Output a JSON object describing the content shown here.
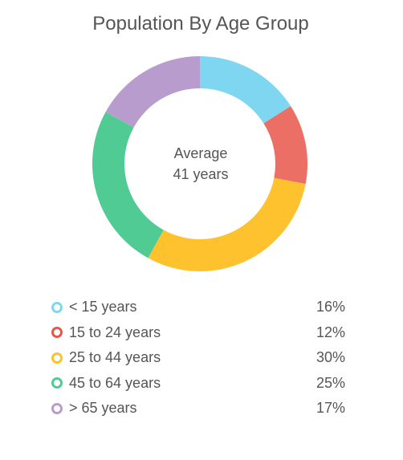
{
  "chart_data": {
    "type": "pie",
    "title": "Population By Age Group",
    "center_label": {
      "line1": "Average",
      "line2": "41 years"
    },
    "categories": [
      "< 15 years",
      "15 to 24 years",
      "25 to 44 years",
      "45 to 64 years",
      "> 65 years"
    ],
    "values": [
      16,
      12,
      30,
      25,
      17
    ],
    "value_labels": [
      "16%",
      "12%",
      "30%",
      "25%",
      "17%"
    ],
    "colors": [
      "#7fd6f0",
      "#ec6f66",
      "#fdc22e",
      "#4fcb93",
      "#b89ccd"
    ],
    "legend_colors": [
      "#7fd6f0",
      "#e8554b",
      "#fdc22e",
      "#4fcb93",
      "#b89ccd"
    ],
    "legend_position": "bottom",
    "style": "donut"
  }
}
